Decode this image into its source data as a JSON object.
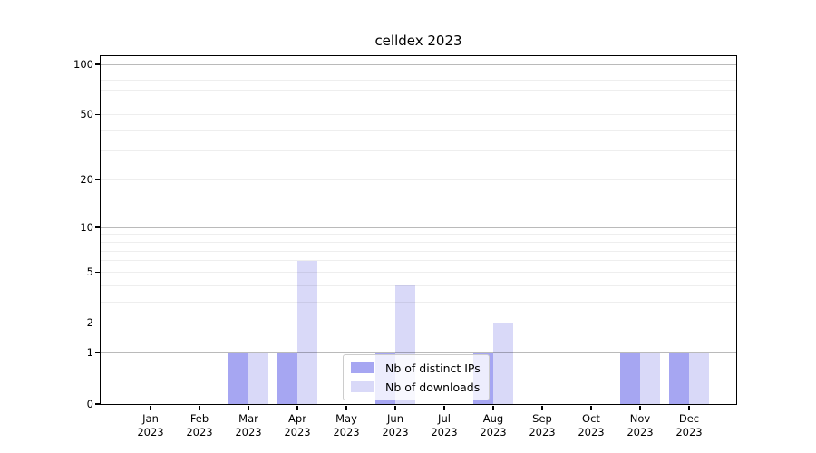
{
  "chart_data": {
    "type": "bar",
    "title": "celldex 2023",
    "scale": "log1p",
    "categories": [
      "Jan 2023",
      "Feb 2023",
      "Mar 2023",
      "Apr 2023",
      "May 2023",
      "Jun 2023",
      "Jul 2023",
      "Aug 2023",
      "Sep 2023",
      "Oct 2023",
      "Nov 2023",
      "Dec 2023"
    ],
    "series": [
      {
        "name": "Nb of distinct IPs",
        "color": "#a6a6f2",
        "values": [
          0,
          0,
          1,
          1,
          0,
          1,
          0,
          1,
          0,
          0,
          1,
          1
        ]
      },
      {
        "name": "Nb of downloads",
        "color": "#d9d9f8",
        "values": [
          0,
          0,
          1,
          6,
          0,
          4,
          0,
          2,
          0,
          0,
          1,
          1
        ]
      }
    ],
    "yticks": [
      0,
      1,
      2,
      5,
      10,
      20,
      50,
      100
    ],
    "ylim": [
      0,
      112
    ],
    "grid": {
      "major": [
        1,
        10,
        100
      ],
      "minor": [
        2,
        3,
        4,
        5,
        6,
        7,
        8,
        9,
        20,
        30,
        40,
        50,
        60,
        70,
        80,
        90
      ],
      "major_color": "rgba(0,0,0,0.27)",
      "minor_color": "rgba(0,0,0,0.065)"
    },
    "legend": {
      "position": "inside-bottom-center"
    },
    "colors": {
      "axis": "#000000",
      "text": "#000000",
      "background": "#ffffff"
    }
  }
}
